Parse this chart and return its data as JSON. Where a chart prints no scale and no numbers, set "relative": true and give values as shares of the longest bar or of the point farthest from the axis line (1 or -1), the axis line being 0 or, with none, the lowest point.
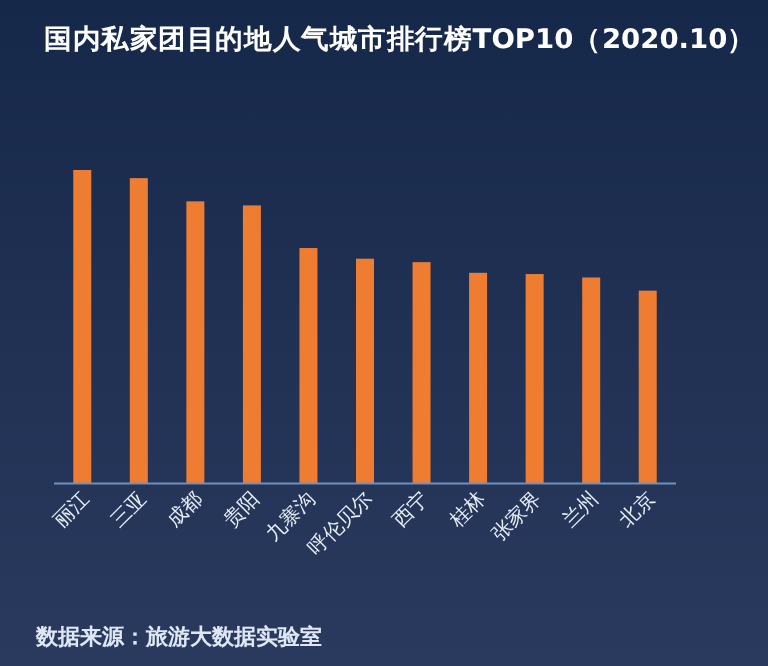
{
  "chart_data": {
    "type": "bar",
    "relative": true,
    "title": "国内私家团目的地人气城市排行榜TOP10（2020.10）",
    "categories": [
      "丽江",
      "三亚",
      "成都",
      "贵阳",
      "九寨沟",
      "呼伦贝尔",
      "西宁",
      "桂林",
      "张家界",
      "兰州",
      "北京"
    ],
    "values": [
      1,
      0.974,
      0.9,
      0.887,
      0.751,
      0.717,
      0.706,
      0.672,
      0.668,
      0.657,
      0.615
    ],
    "color": "#ee7d31",
    "annotations": [
      "数据来源：旅游大数据实验室"
    ],
    "grid": false
  }
}
